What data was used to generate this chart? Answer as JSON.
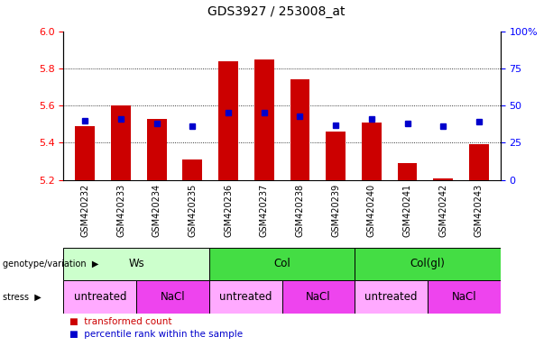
{
  "title": "GDS3927 / 253008_at",
  "samples": [
    "GSM420232",
    "GSM420233",
    "GSM420234",
    "GSM420235",
    "GSM420236",
    "GSM420237",
    "GSM420238",
    "GSM420239",
    "GSM420240",
    "GSM420241",
    "GSM420242",
    "GSM420243"
  ],
  "bar_values": [
    5.49,
    5.6,
    5.53,
    5.31,
    5.84,
    5.85,
    5.74,
    5.46,
    5.51,
    5.29,
    5.21,
    5.39
  ],
  "dot_percentiles": [
    40,
    41,
    38,
    36,
    45,
    45,
    43,
    37,
    41,
    38,
    36,
    39
  ],
  "bar_bottom": 5.2,
  "ylim_left": [
    5.2,
    6.0
  ],
  "ylim_right": [
    0,
    100
  ],
  "yticks_left": [
    5.2,
    5.4,
    5.6,
    5.8,
    6.0
  ],
  "yticks_right": [
    0,
    25,
    50,
    75,
    100
  ],
  "bar_color": "#CC0000",
  "dot_color": "#0000CC",
  "xtick_bg": "#cccccc",
  "geno_segs": [
    {
      "start": 0,
      "end": 4,
      "label": "Ws",
      "color": "#ccffcc"
    },
    {
      "start": 4,
      "end": 8,
      "label": "Col",
      "color": "#44dd44"
    },
    {
      "start": 8,
      "end": 12,
      "label": "Col(gl)",
      "color": "#44dd44"
    }
  ],
  "stress_segs": [
    {
      "start": 0,
      "end": 2,
      "label": "untreated",
      "color": "#ffaaff"
    },
    {
      "start": 2,
      "end": 4,
      "label": "NaCl",
      "color": "#ee44ee"
    },
    {
      "start": 4,
      "end": 6,
      "label": "untreated",
      "color": "#ffaaff"
    },
    {
      "start": 6,
      "end": 8,
      "label": "NaCl",
      "color": "#ee44ee"
    },
    {
      "start": 8,
      "end": 10,
      "label": "untreated",
      "color": "#ffaaff"
    },
    {
      "start": 10,
      "end": 12,
      "label": "NaCl",
      "color": "#ee44ee"
    }
  ],
  "grid_yticks": [
    5.4,
    5.6,
    5.8
  ],
  "legend_items": [
    {
      "label": "transformed count",
      "color": "#CC0000"
    },
    {
      "label": "percentile rank within the sample",
      "color": "#0000CC"
    }
  ]
}
